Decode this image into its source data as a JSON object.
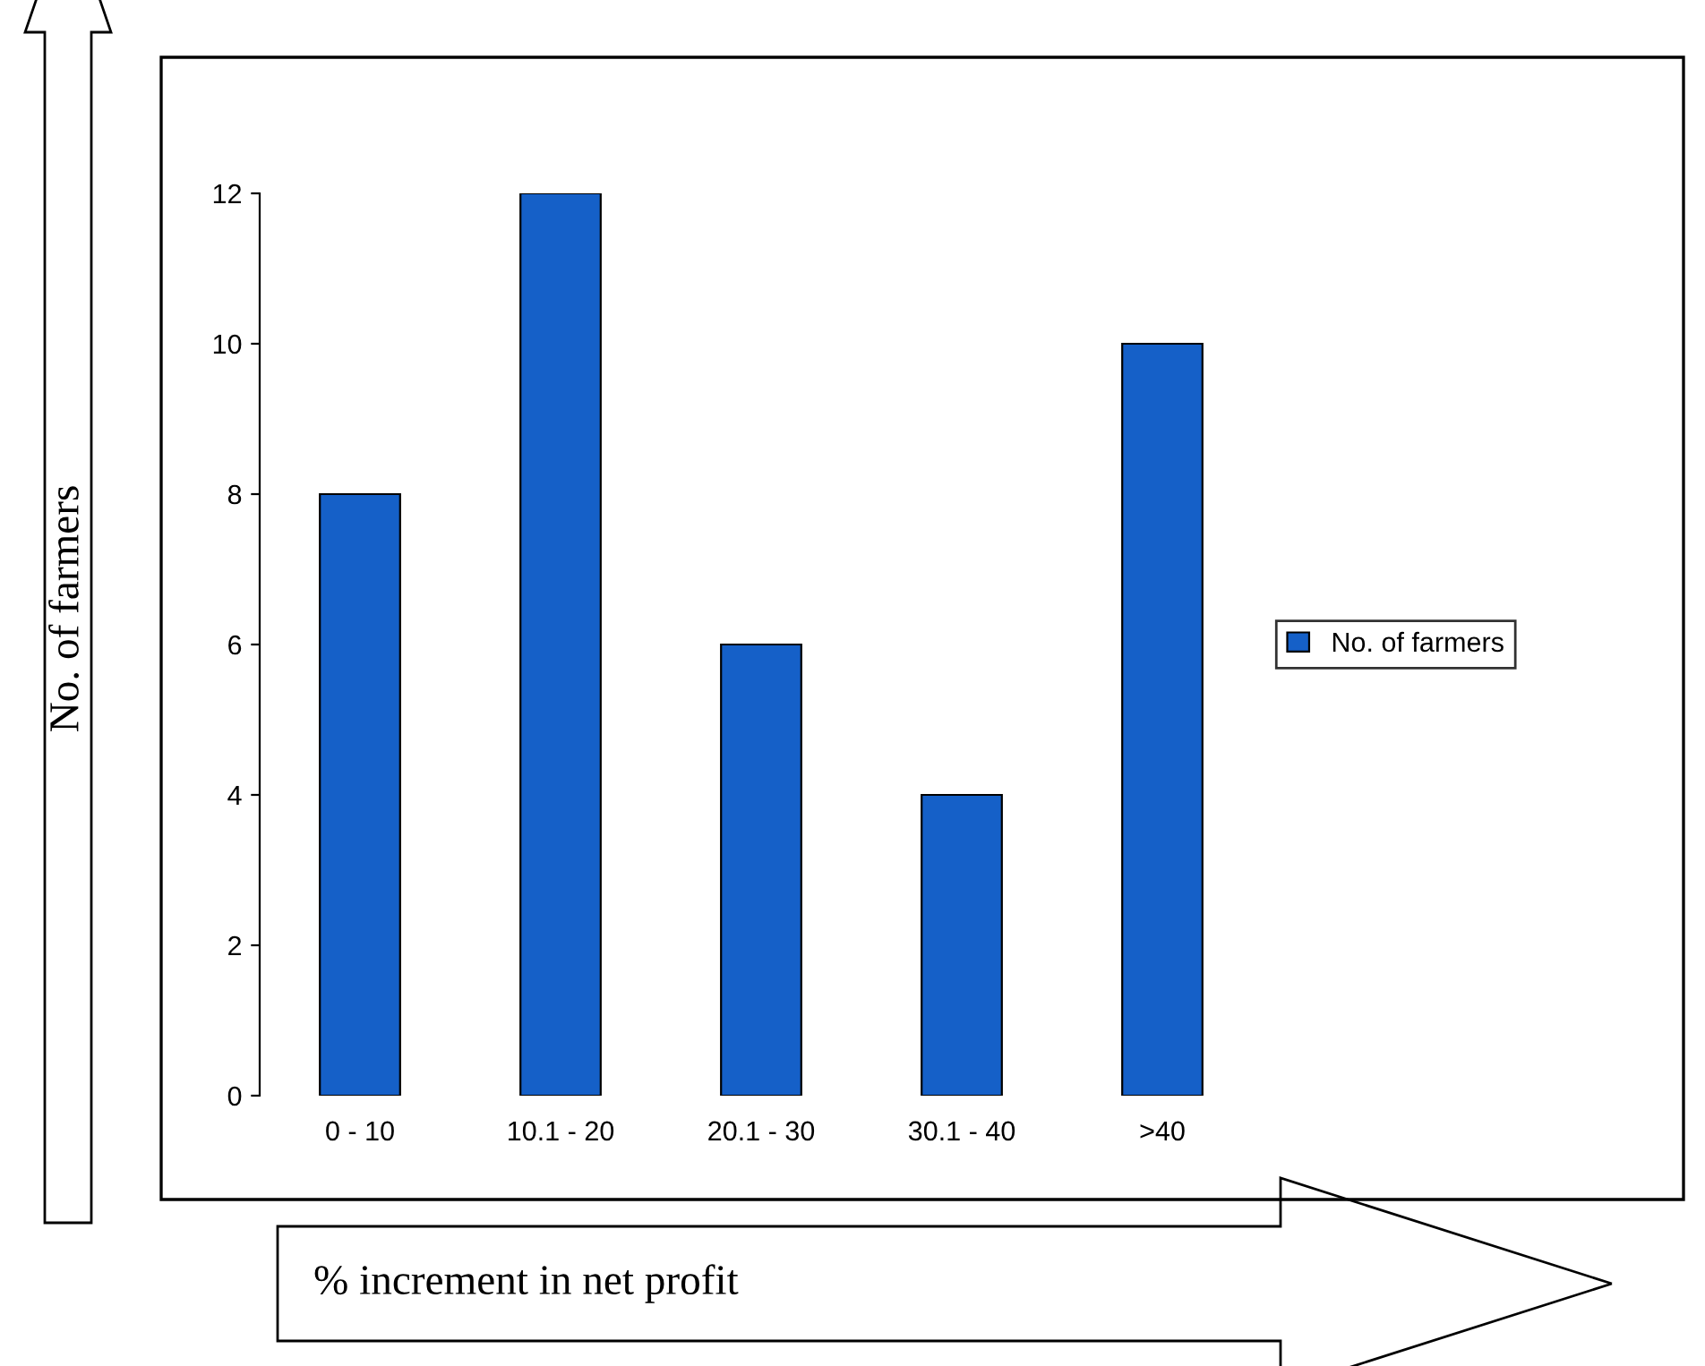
{
  "chart_data": {
    "type": "bar",
    "xlabel": "% increment in net profit",
    "ylabel": "No. of farmers",
    "categories": [
      "0 - 10",
      "10.1 - 20",
      "20.1 - 30",
      "30.1 - 40",
      ">40"
    ],
    "series": [
      {
        "name": "No. of farmers",
        "color": "#1560c8",
        "values": [
          8,
          12,
          6,
          4,
          10
        ]
      }
    ],
    "ylim": [
      0,
      12
    ],
    "yticks": [
      0,
      2,
      4,
      6,
      8,
      10,
      12
    ],
    "grid": false,
    "legend": "right"
  }
}
